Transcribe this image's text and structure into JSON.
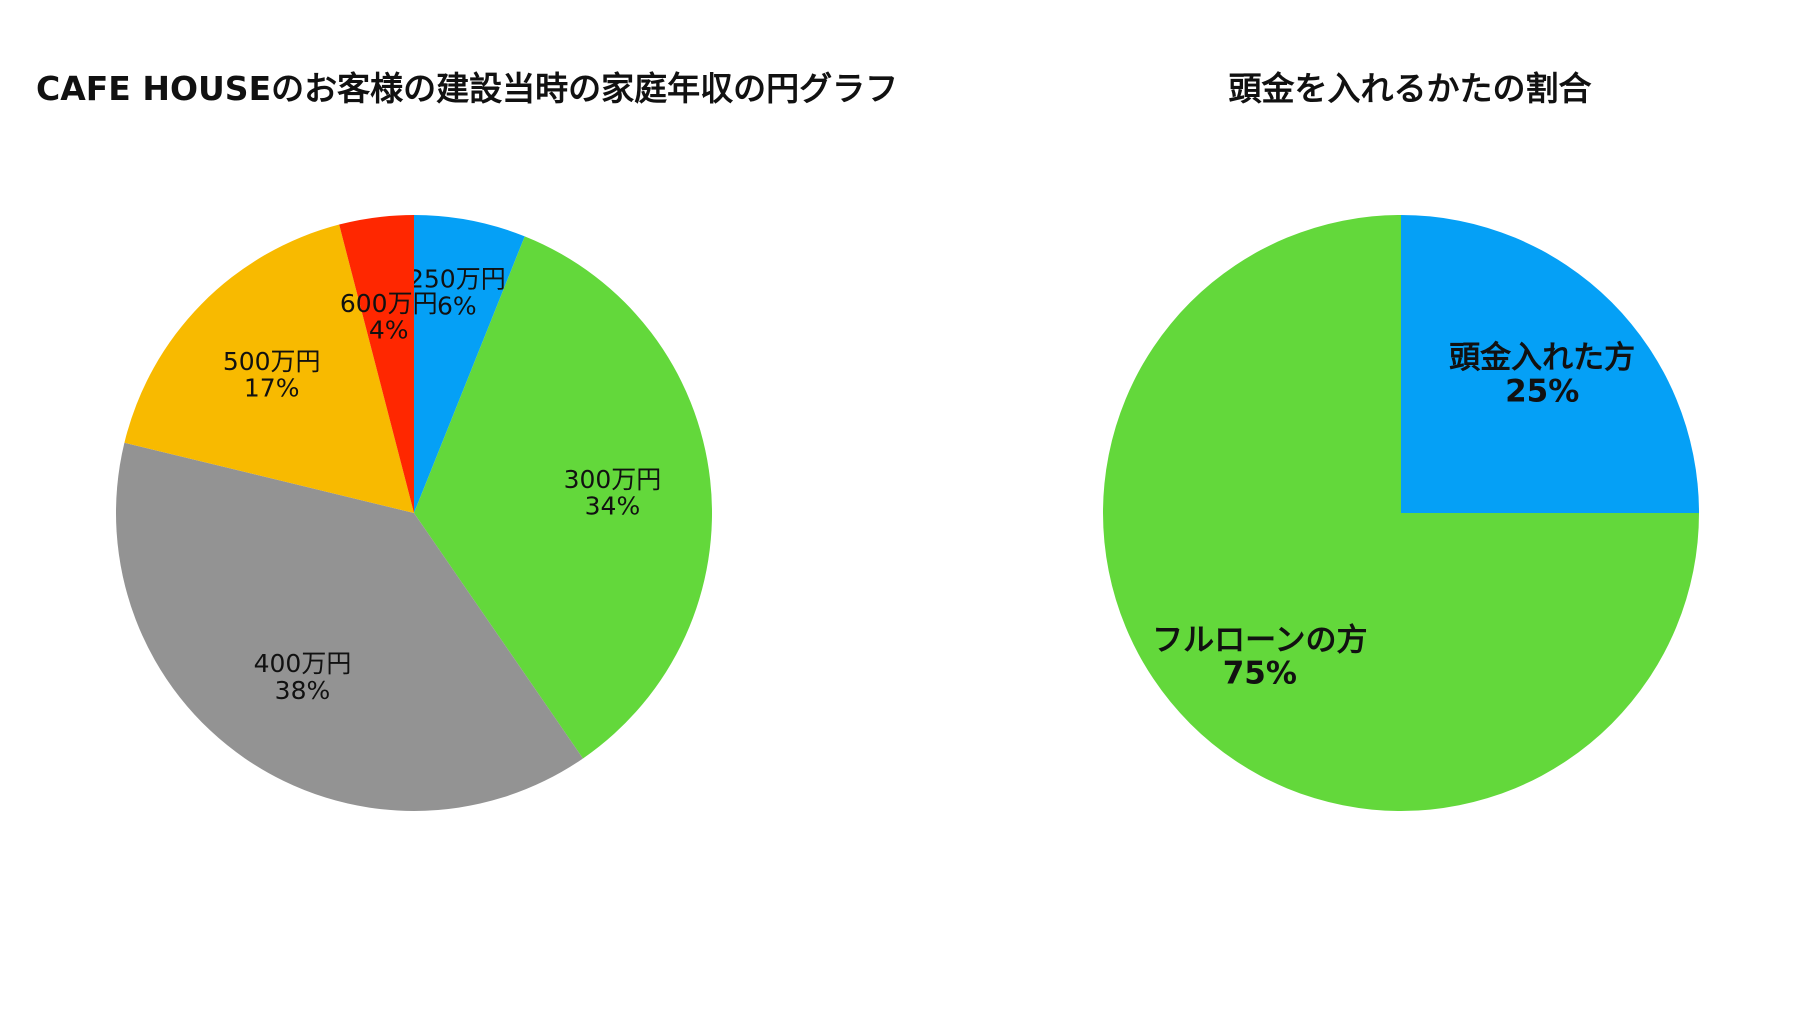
{
  "chart_data": [
    {
      "type": "pie",
      "title": "CAFE HOUSEのお客様の建設当時の家庭年収の円グラフ",
      "slices": [
        {
          "label": "250万円",
          "percent_label": "6%",
          "value": 6,
          "color": "#05a0f6"
        },
        {
          "label": "300万円",
          "percent_label": "34%",
          "value": 34,
          "color": "#63d83b"
        },
        {
          "label": "400万円",
          "percent_label": "38%",
          "value": 38,
          "color": "#939393"
        },
        {
          "label": "500万円",
          "percent_label": "17%",
          "value": 17,
          "color": "#f8ba00"
        },
        {
          "label": "600万円",
          "percent_label": "4%",
          "value": 4,
          "color": "#ff2700"
        }
      ],
      "start_angle": "12 o'clock",
      "direction": "clockwise",
      "legend": "none"
    },
    {
      "type": "pie",
      "title": "頭金を入れるかたの割合",
      "slices": [
        {
          "label": "頭金入れた方",
          "percent_label": "25%",
          "value": 25,
          "color": "#05a0f6"
        },
        {
          "label": "フルローンの方",
          "percent_label": "75%",
          "value": 75,
          "color": "#63d83b"
        }
      ],
      "start_angle": "12 o'clock",
      "direction": "clockwise",
      "legend": "none"
    }
  ]
}
